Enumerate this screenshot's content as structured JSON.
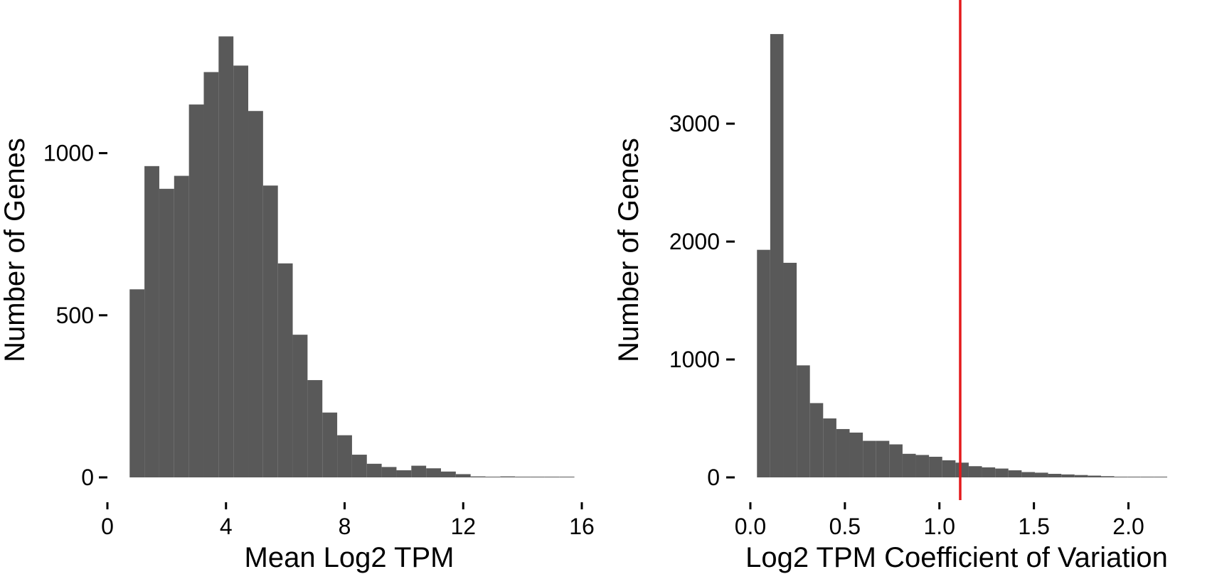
{
  "chart_data": [
    {
      "type": "bar",
      "title": "",
      "xlabel": "Mean Log2 TPM",
      "ylabel": "Number of Genes",
      "xlim": [
        0,
        16
      ],
      "ylim": [
        0,
        1400
      ],
      "x_ticks": [
        "0",
        "4",
        "8",
        "12",
        "16"
      ],
      "y_ticks": [
        "0",
        "500",
        "1000"
      ],
      "grid": false,
      "legend": "none",
      "bar_color": "#595959",
      "bin_width": 0.5,
      "bins_start": [
        0.75,
        1.25,
        1.75,
        2.25,
        2.75,
        3.25,
        3.75,
        4.25,
        4.75,
        5.25,
        5.75,
        6.25,
        6.75,
        7.25,
        7.75,
        8.25,
        8.75,
        9.25,
        9.75,
        10.25,
        10.75,
        11.25,
        11.75,
        12.25,
        12.75,
        13.25,
        13.75,
        14.25,
        14.75,
        15.25
      ],
      "values": [
        580,
        960,
        890,
        930,
        1150,
        1250,
        1360,
        1270,
        1130,
        900,
        660,
        440,
        300,
        200,
        130,
        70,
        42,
        32,
        22,
        36,
        28,
        18,
        10,
        3,
        2,
        3,
        2,
        1,
        0,
        1
      ]
    },
    {
      "type": "bar",
      "title": "",
      "xlabel": "Log2 TPM Coefficient of Variation",
      "ylabel": "Number of Genes",
      "xlim": [
        -0.03,
        2.22
      ],
      "ylim": [
        0,
        3850
      ],
      "x_ticks": [
        "0.0",
        "0.5",
        "1.0",
        "1.5",
        "2.0"
      ],
      "y_ticks": [
        "0",
        "1000",
        "2000",
        "3000"
      ],
      "grid": false,
      "legend": "none",
      "bar_color": "#595959",
      "bin_width": 0.07,
      "bins_start": [
        0.035,
        0.105,
        0.175,
        0.245,
        0.315,
        0.385,
        0.455,
        0.525,
        0.595,
        0.665,
        0.735,
        0.805,
        0.875,
        0.945,
        1.015,
        1.085,
        1.155,
        1.225,
        1.295,
        1.365,
        1.435,
        1.505,
        1.575,
        1.645,
        1.715,
        1.785,
        1.855,
        1.925,
        1.995,
        2.065,
        2.135
      ],
      "values": [
        1930,
        3760,
        1820,
        950,
        630,
        500,
        410,
        380,
        310,
        310,
        280,
        200,
        190,
        175,
        145,
        125,
        95,
        85,
        75,
        60,
        45,
        40,
        30,
        25,
        20,
        15,
        10,
        5,
        5,
        3,
        3
      ],
      "reference_line_x": 1.11,
      "reference_line_color": "#e41a1c"
    }
  ]
}
